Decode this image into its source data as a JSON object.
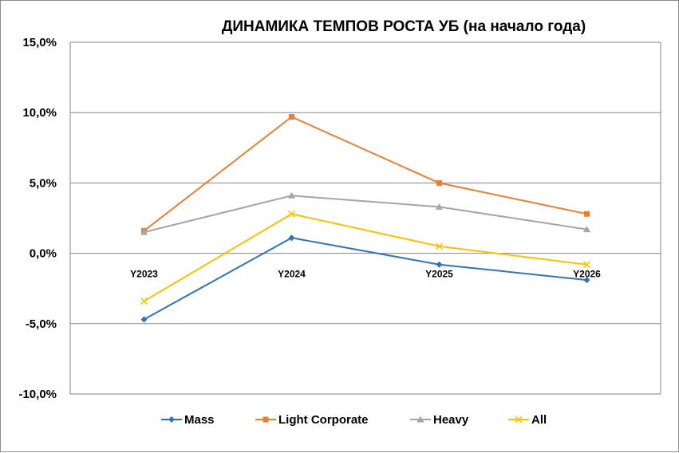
{
  "chart_data": {
    "type": "line",
    "title": "ДИНАМИКА ТЕМПОВ РОСТА УБ (на начало года)",
    "xlabel": "",
    "ylabel": "",
    "categories": [
      "Y2023",
      "Y2024",
      "Y2025",
      "Y2026"
    ],
    "ylim": [
      -10,
      15
    ],
    "yticks": [
      15,
      10,
      5,
      0,
      -5,
      -10
    ],
    "ytick_labels": [
      "15,0%",
      "10,0%",
      "5,0%",
      "0,0%",
      "-5,0%",
      "-10,0%"
    ],
    "grid": true,
    "legend_position": "bottom",
    "series": [
      {
        "name": "Mass",
        "color": "#2E75B6",
        "marker": "diamond",
        "values": [
          -4.7,
          1.1,
          -0.8,
          -1.9
        ]
      },
      {
        "name": "Light Corporate",
        "color": "#ED7D31",
        "marker": "square",
        "values": [
          1.6,
          9.7,
          5.0,
          2.8
        ]
      },
      {
        "name": "Heavy",
        "color": "#A5A5A5",
        "marker": "triangle",
        "values": [
          1.5,
          4.1,
          3.3,
          1.7
        ]
      },
      {
        "name": "All",
        "color": "#FFC000",
        "marker": "x",
        "values": [
          -3.4,
          2.8,
          0.5,
          -0.8
        ]
      }
    ]
  }
}
